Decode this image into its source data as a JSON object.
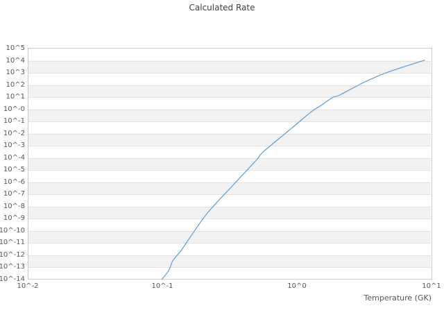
{
  "chart_data": {
    "type": "line",
    "title": "Calculated Rate",
    "xlabel": "Temperature (GK)",
    "ylabel": "",
    "x_scale": "log10",
    "y_scale": "log10",
    "xlim": [
      0.01,
      10
    ],
    "ylim": [
      1e-14,
      100000.0
    ],
    "x_ticks": [
      {
        "exp": -2,
        "label": "10^-2"
      },
      {
        "exp": -1,
        "label": "10^-1"
      },
      {
        "exp": 0,
        "label": "10^0"
      },
      {
        "exp": 1,
        "label": "10^1"
      }
    ],
    "y_ticks": [
      {
        "exp": 5,
        "label": "10^5"
      },
      {
        "exp": 4,
        "label": "10^4"
      },
      {
        "exp": 3,
        "label": "10^3"
      },
      {
        "exp": 2,
        "label": "10^2"
      },
      {
        "exp": 1,
        "label": "10^1"
      },
      {
        "exp": 0,
        "label": "10^-0"
      },
      {
        "exp": -1,
        "label": "10^-1"
      },
      {
        "exp": -2,
        "label": "10^-2"
      },
      {
        "exp": -3,
        "label": "10^-3"
      },
      {
        "exp": -4,
        "label": "10^-4"
      },
      {
        "exp": -5,
        "label": "10^-5"
      },
      {
        "exp": -6,
        "label": "10^-6"
      },
      {
        "exp": -7,
        "label": "10^-7"
      },
      {
        "exp": -8,
        "label": "10^-8"
      },
      {
        "exp": -9,
        "label": "10^-9"
      },
      {
        "exp": -10,
        "label": "10^-10"
      },
      {
        "exp": -11,
        "label": "10^-11"
      },
      {
        "exp": -12,
        "label": "10^-12"
      },
      {
        "exp": -13,
        "label": "10^-13"
      },
      {
        "exp": -14,
        "label": "10^-14"
      }
    ],
    "grid": "horizontal-only",
    "background_bands": "alternating",
    "legend": "none",
    "series": [
      {
        "name": "Calculated Rate",
        "color": "#5b9bd5",
        "points": [
          [
            0.099,
            1e-14
          ],
          [
            0.112,
            6e-14
          ],
          [
            0.12,
            3.8e-13
          ],
          [
            0.138,
            2.5e-12
          ],
          [
            0.166,
            5e-11
          ],
          [
            0.219,
            3.5e-09
          ],
          [
            0.331,
            5e-07
          ],
          [
            0.501,
            7e-05
          ],
          [
            0.562,
            0.00032
          ],
          [
            0.927,
            0.032
          ],
          [
            1.29,
            0.69
          ],
          [
            1.51,
            2.1
          ],
          [
            1.85,
            9.8
          ],
          [
            2.08,
            15
          ],
          [
            3.16,
            170
          ],
          [
            4.79,
            1200
          ],
          [
            8.87,
            11000
          ]
        ]
      }
    ]
  },
  "colors": {
    "background": "#ffffff",
    "band": "#f2f2f2",
    "gridline": "#e2e2e2",
    "border": "#cccccc",
    "title_text": "#3f3f3f",
    "tick_text": "#555555",
    "line": "#5b9bd5"
  }
}
